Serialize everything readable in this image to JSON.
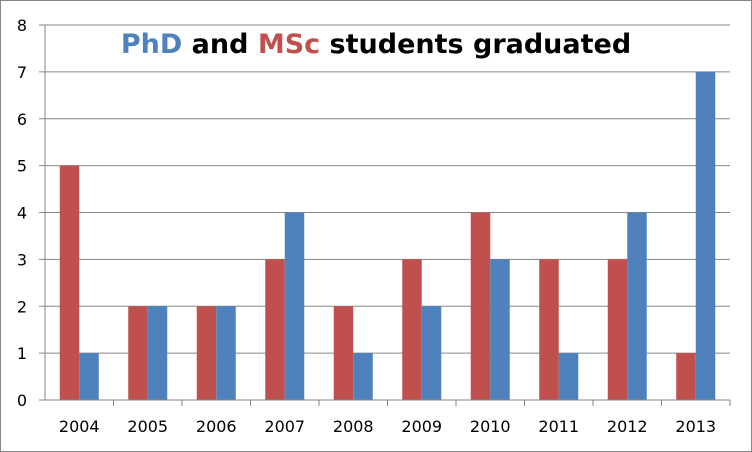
{
  "chart_data": {
    "type": "bar",
    "title": {
      "parts": [
        {
          "text": "PhD",
          "color": "#4f81bd"
        },
        {
          "text": " and ",
          "color": "#000000"
        },
        {
          "text": "MSc",
          "color": "#c0504d"
        },
        {
          "text": " students graduated",
          "color": "#000000"
        }
      ]
    },
    "categories": [
      "2004",
      "2005",
      "2006",
      "2007",
      "2008",
      "2009",
      "2010",
      "2011",
      "2012",
      "2013"
    ],
    "series": [
      {
        "color": "#c0504d",
        "values": [
          5,
          2,
          2,
          3,
          2,
          3,
          4,
          3,
          3,
          1
        ]
      },
      {
        "color": "#4f81bd",
        "values": [
          1,
          2,
          2,
          4,
          1,
          2,
          3,
          1,
          4,
          7
        ]
      }
    ],
    "ylim": [
      0,
      8
    ],
    "yticks": [
      0,
      1,
      2,
      3,
      4,
      5,
      6,
      7,
      8
    ],
    "grid": true,
    "legend": "none"
  }
}
